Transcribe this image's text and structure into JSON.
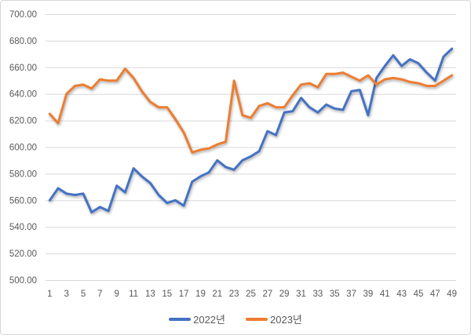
{
  "chart_data": {
    "type": "line",
    "title": "",
    "xlabel": "",
    "ylabel": "",
    "x": [
      1,
      2,
      3,
      4,
      5,
      6,
      7,
      8,
      9,
      10,
      11,
      12,
      13,
      14,
      15,
      16,
      17,
      18,
      19,
      20,
      21,
      22,
      23,
      24,
      25,
      26,
      27,
      28,
      29,
      30,
      31,
      32,
      33,
      34,
      35,
      36,
      37,
      38,
      39,
      40,
      41,
      42,
      43,
      44,
      45,
      46,
      47,
      48,
      49
    ],
    "x_tick_labels": [
      "1",
      "3",
      "5",
      "7",
      "9",
      "11",
      "13",
      "15",
      "17",
      "19",
      "21",
      "23",
      "25",
      "27",
      "29",
      "31",
      "33",
      "35",
      "37",
      "39",
      "41",
      "43",
      "45",
      "47",
      "49"
    ],
    "y_ticks": [
      500,
      520,
      540,
      560,
      580,
      600,
      620,
      640,
      660,
      680,
      700
    ],
    "y_tick_labels": [
      "500.00",
      "520.00",
      "540.00",
      "560.00",
      "580.00",
      "600.00",
      "620.00",
      "640.00",
      "660.00",
      "680.00",
      "700.00"
    ],
    "ylim": [
      500,
      700
    ],
    "grid": true,
    "legend_position": "bottom",
    "grid_color": "#d9d9d9",
    "text_color": "#595959",
    "series": [
      {
        "name": "2022년",
        "color": "#4472C4",
        "values": [
          560,
          569,
          565,
          564,
          565,
          551,
          555,
          552,
          571,
          566,
          584,
          578,
          573,
          564,
          558,
          560,
          556,
          574,
          578,
          581,
          590,
          585,
          583,
          590,
          593,
          597,
          612,
          609,
          626,
          627,
          637,
          630,
          626,
          632,
          629,
          628,
          642,
          643,
          624,
          652,
          661,
          669,
          661,
          666,
          663,
          656,
          650,
          668,
          674
        ]
      },
      {
        "name": "2023년",
        "color": "#ED7D31",
        "values": [
          625,
          618,
          640,
          646,
          647,
          644,
          651,
          650,
          650,
          659,
          652,
          642,
          634,
          630,
          630,
          621,
          611,
          596,
          598,
          599,
          602,
          604,
          650,
          624,
          622,
          631,
          633,
          630,
          630,
          639,
          647,
          648,
          645,
          655,
          655,
          656,
          653,
          650,
          654,
          647,
          651,
          652,
          651,
          649,
          648,
          646,
          646,
          650,
          654
        ]
      }
    ]
  }
}
